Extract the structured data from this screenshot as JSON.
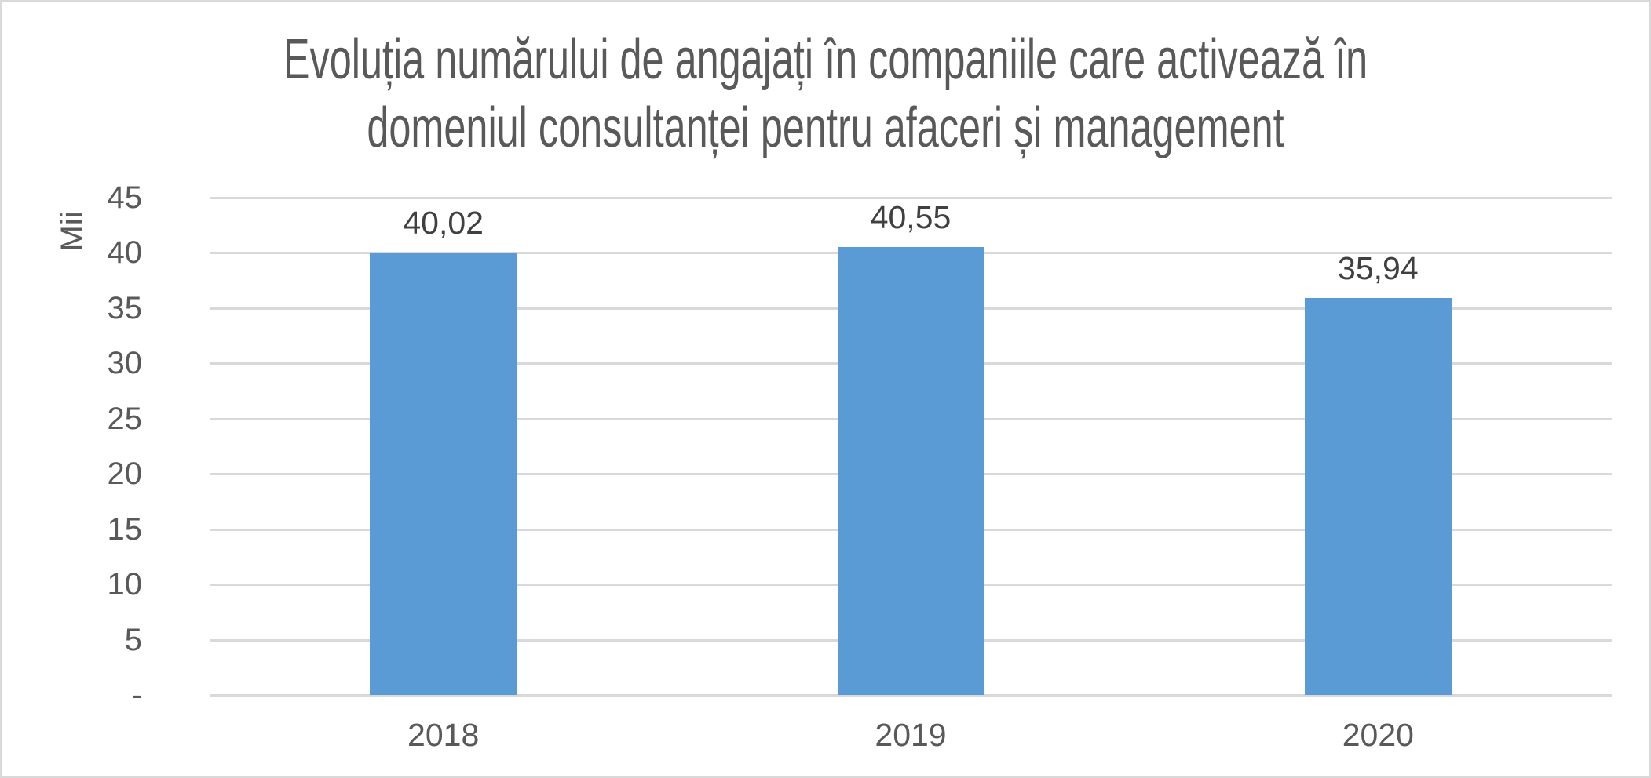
{
  "chart_data": {
    "type": "bar",
    "title": "Evoluția numărului de angajați în companiile care activează în domeniul consultanței pentru afaceri și management",
    "title_lines": [
      "Evoluția numărului de angajați în companiile care activează în",
      "domeniul consultanței pentru afaceri și management"
    ],
    "ylabel": "Mii",
    "xlabel": "",
    "categories": [
      "2018",
      "2019",
      "2020"
    ],
    "values": [
      40.02,
      40.55,
      35.94
    ],
    "value_labels": [
      "40,02",
      "40,55",
      "35,94"
    ],
    "ylim": [
      0,
      45
    ],
    "ytick_values": [
      45,
      40,
      35,
      30,
      25,
      20,
      15,
      10,
      5,
      0
    ],
    "ytick_labels": [
      "45",
      "40",
      "35",
      "30",
      "25",
      "20",
      "15",
      "10",
      "5",
      "-"
    ],
    "grid": true,
    "legend_position": "none",
    "decimal_separator": ",",
    "colors": {
      "bar": "#5B9BD5",
      "gridline": "#D9D9D9",
      "axis_line": "#D9D9D9",
      "title_text": "#595959",
      "tick_text": "#595959",
      "data_label_text": "#404040",
      "background": "#FFFFFF",
      "border": "#D9D9D9"
    }
  }
}
